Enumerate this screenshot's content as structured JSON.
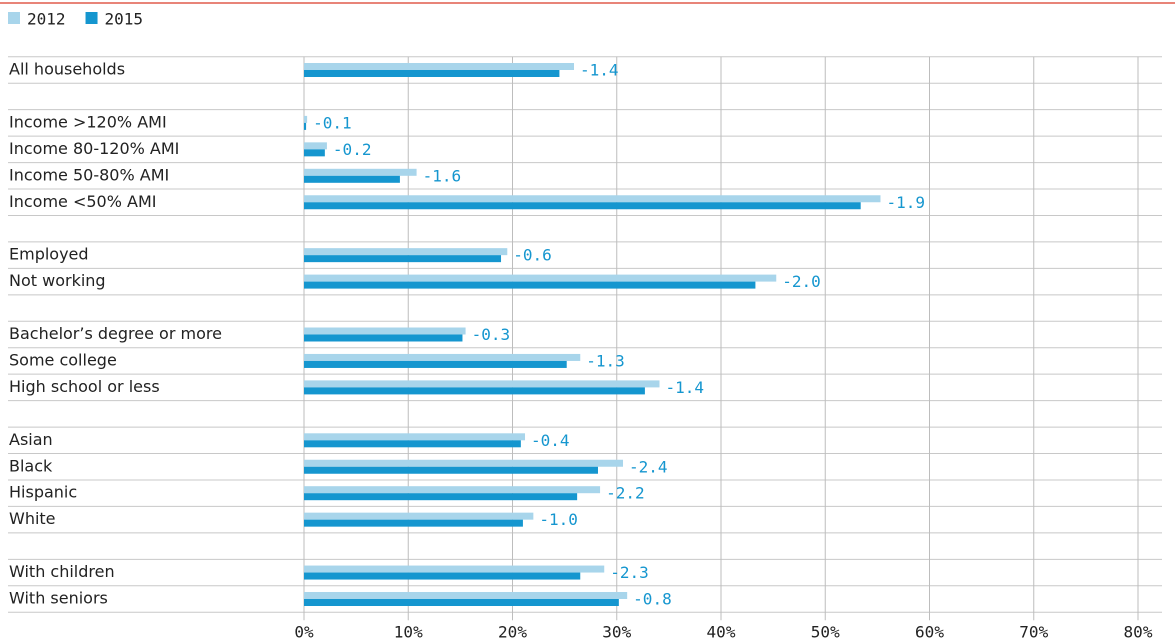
{
  "chart_data": {
    "type": "bar",
    "orientation": "horizontal",
    "categories": [
      "All households",
      null,
      "Income >120% AMI",
      "Income 80-120% AMI",
      "Income 50-80% AMI",
      "Income <50% AMI",
      null,
      "Employed",
      "Not working",
      null,
      "Bachelor’s degree or more",
      "Some college",
      "High school or less",
      null,
      "Asian",
      "Black",
      "Hispanic",
      "White",
      null,
      "With children",
      "With seniors"
    ],
    "series": [
      {
        "name": "2012",
        "color": "#a8d5eb",
        "values": [
          25.9,
          null,
          0.3,
          2.2,
          10.8,
          55.3,
          null,
          19.5,
          45.3,
          null,
          15.5,
          26.5,
          34.1,
          null,
          21.2,
          30.6,
          28.4,
          22.0,
          null,
          28.8,
          31.0
        ]
      },
      {
        "name": "2015",
        "color": "#1596cf",
        "values": [
          24.5,
          null,
          0.2,
          2.0,
          9.2,
          53.4,
          null,
          18.9,
          43.3,
          null,
          15.2,
          25.2,
          32.7,
          null,
          20.8,
          28.2,
          26.2,
          21.0,
          null,
          26.5,
          30.2
        ]
      }
    ],
    "annotations": {
      "color": "#1596cf",
      "values": [
        -1.4,
        null,
        -0.1,
        -0.2,
        -1.6,
        -1.9,
        null,
        -0.6,
        -2.0,
        null,
        -0.3,
        -1.3,
        -1.4,
        null,
        -0.4,
        -2.4,
        -2.2,
        -1.0,
        null,
        -2.3,
        -0.8
      ],
      "value_labels": [
        "-1.4",
        null,
        "-0.1",
        "-0.2",
        "-1.6",
        "-1.9",
        null,
        "-0.6",
        "-2.0",
        null,
        "-0.3",
        "-1.3",
        "-1.4",
        null,
        "-0.4",
        "-2.4",
        "-2.2",
        "-1.0",
        null,
        "-2.3",
        "-0.8"
      ]
    },
    "xlim": [
      0,
      80
    ],
    "xticks": [
      {
        "value": 0,
        "label": "0%"
      },
      {
        "value": 10,
        "label": "10%"
      },
      {
        "value": 20,
        "label": "20%"
      },
      {
        "value": 30,
        "label": "30%"
      },
      {
        "value": 40,
        "label": "40%"
      },
      {
        "value": 50,
        "label": "50%"
      },
      {
        "value": 60,
        "label": "60%"
      },
      {
        "value": 70,
        "label": "70%"
      },
      {
        "value": 80,
        "label": "80%"
      }
    ],
    "grid": true,
    "legend": "top-left"
  }
}
